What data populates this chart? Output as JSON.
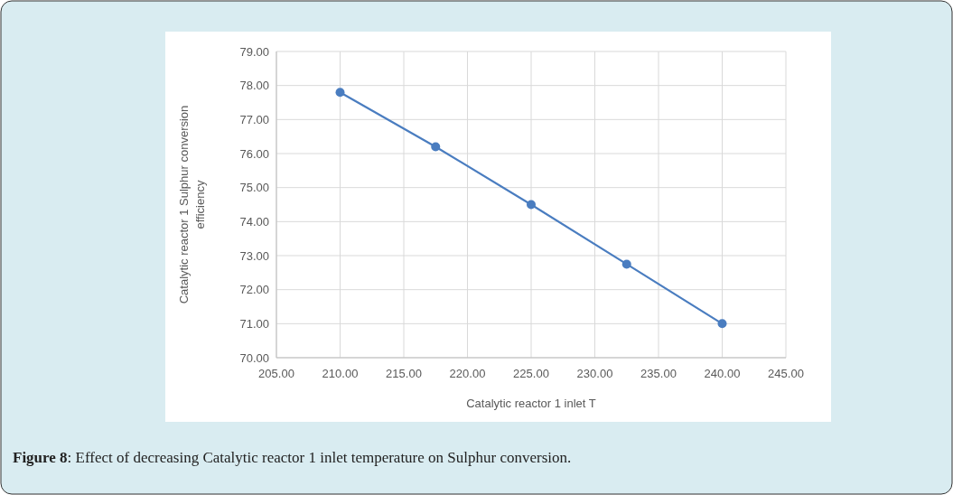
{
  "chart_data": {
    "type": "line",
    "xlabel": "Catalytic reactor 1 inlet T",
    "ylabel": "Catalytic reactor 1 Sulphur conversion efficiency",
    "x": [
      210,
      217.5,
      225,
      232.5,
      240
    ],
    "series": [
      {
        "color": "#4a7dc0",
        "values": [
          77.8,
          76.2,
          74.5,
          72.75,
          71.0
        ]
      }
    ],
    "xlim": [
      205,
      245
    ],
    "xticks": [
      {
        "value": 205,
        "label": "205.00"
      },
      {
        "value": 210,
        "label": "210.00"
      },
      {
        "value": 215,
        "label": "215.00"
      },
      {
        "value": 220,
        "label": "220.00"
      },
      {
        "value": 225,
        "label": "225.00"
      },
      {
        "value": 230,
        "label": "230.00"
      },
      {
        "value": 235,
        "label": "235.00"
      },
      {
        "value": 240,
        "label": "240.00"
      },
      {
        "value": 245,
        "label": "245.00"
      }
    ],
    "ylim": [
      70,
      79
    ],
    "yticks": [
      {
        "value": 70,
        "label": "70.00"
      },
      {
        "value": 71,
        "label": "71.00"
      },
      {
        "value": 72,
        "label": "72.00"
      },
      {
        "value": 73,
        "label": "73.00"
      },
      {
        "value": 74,
        "label": "74.00"
      },
      {
        "value": 75,
        "label": "75.00"
      },
      {
        "value": 76,
        "label": "76.00"
      },
      {
        "value": 77,
        "label": "77.00"
      },
      {
        "value": 78,
        "label": "78.00"
      },
      {
        "value": 79,
        "label": "79.00"
      }
    ],
    "grid": true,
    "marker": "circle",
    "line_style": "solid",
    "annotations": [
      "Figure 8: Effect of decreasing Catalytic reactor 1 inlet temperature on Sulphur conversion."
    ]
  }
}
